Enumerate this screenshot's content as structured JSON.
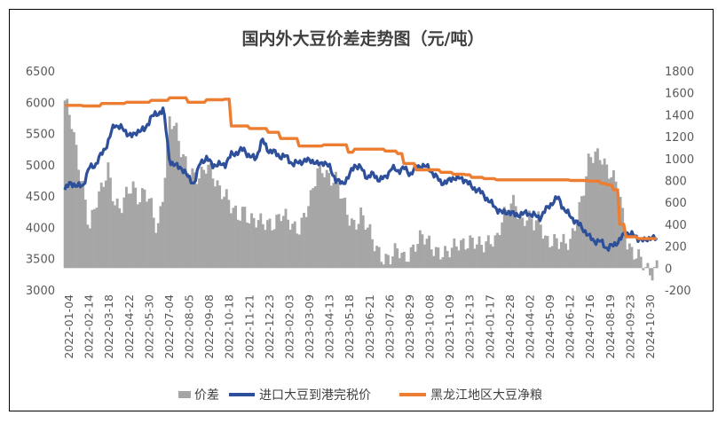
{
  "chart_data": {
    "type": "bar+line",
    "title": "国内外大豆价差走势图（元/吨）",
    "left_axis": {
      "min": 3000,
      "max": 6500,
      "ticks": [
        3000,
        3500,
        4000,
        4500,
        5000,
        5500,
        6000,
        6500
      ]
    },
    "right_axis": {
      "min": -200,
      "max": 1800,
      "ticks": [
        -200,
        0,
        200,
        400,
        600,
        800,
        1000,
        1200,
        1400,
        1600,
        1800
      ]
    },
    "x_tick_labels": [
      "2022-01-04",
      "2022-02-14",
      "2022-03-18",
      "2022-04-22",
      "2022-05-30",
      "2022-07-04",
      "2022-08-05",
      "2022-09-08",
      "2022-10-18",
      "2022-11-21",
      "2022-12-23",
      "2023-02-03",
      "2023-03-09",
      "2023-04-13",
      "2023-05-18",
      "2023-06-21",
      "2023-07-26",
      "2023-08-29",
      "2023-10-08",
      "2023-11-09",
      "2023-12-13",
      "2024-01-17",
      "2024-02-28",
      "2024-04-02",
      "2024-05-09",
      "2024-06-12",
      "2024-07-16",
      "2024-08-19",
      "2024-09-23",
      "2024-10-30"
    ],
    "legend": [
      "价差",
      "进口大豆到港完税价",
      "黑龙江地区大豆净粮"
    ],
    "colors": {
      "spread": "#a6a6a6",
      "import": "#2e4f9a",
      "heilongjiang": "#ed7d31"
    },
    "series": [
      {
        "name": "价差",
        "axis": "right",
        "kind": "bar",
        "points": [
          [
            0,
            1530
          ],
          [
            1,
            1330
          ],
          [
            2,
            1000
          ],
          [
            3,
            760
          ],
          [
            4,
            380
          ],
          [
            5,
            560
          ],
          [
            6,
            700
          ],
          [
            7,
            940
          ],
          [
            8,
            640
          ],
          [
            9,
            520
          ],
          [
            10,
            640
          ],
          [
            11,
            760
          ],
          [
            12,
            660
          ],
          [
            13,
            720
          ],
          [
            14,
            540
          ],
          [
            15,
            300
          ],
          [
            16,
            740
          ],
          [
            17,
            1400
          ],
          [
            18,
            1250
          ],
          [
            19,
            1000
          ],
          [
            20,
            920
          ],
          [
            21,
            880
          ],
          [
            22,
            830
          ],
          [
            23,
            900
          ],
          [
            24,
            850
          ],
          [
            25,
            760
          ],
          [
            26,
            690
          ],
          [
            27,
            530
          ],
          [
            28,
            440
          ],
          [
            29,
            560
          ],
          [
            30,
            470
          ],
          [
            31,
            420
          ],
          [
            32,
            380
          ],
          [
            33,
            410
          ],
          [
            34,
            440
          ],
          [
            35,
            500
          ],
          [
            36,
            420
          ],
          [
            37,
            360
          ],
          [
            38,
            390
          ],
          [
            39,
            530
          ],
          [
            40,
            630
          ],
          [
            41,
            870
          ],
          [
            42,
            920
          ],
          [
            43,
            850
          ],
          [
            44,
            800
          ],
          [
            45,
            600
          ],
          [
            46,
            470
          ],
          [
            47,
            420
          ],
          [
            48,
            500
          ],
          [
            49,
            350
          ],
          [
            50,
            230
          ],
          [
            51,
            160
          ],
          [
            52,
            100
          ],
          [
            53,
            80
          ],
          [
            54,
            150
          ],
          [
            55,
            100
          ],
          [
            56,
            170
          ],
          [
            57,
            220
          ],
          [
            58,
            260
          ],
          [
            59,
            230
          ],
          [
            60,
            200
          ],
          [
            61,
            150
          ],
          [
            62,
            100
          ],
          [
            63,
            170
          ],
          [
            64,
            260
          ],
          [
            65,
            250
          ],
          [
            66,
            230
          ],
          [
            67,
            180
          ],
          [
            68,
            220
          ],
          [
            69,
            300
          ],
          [
            70,
            250
          ],
          [
            71,
            420
          ],
          [
            72,
            540
          ],
          [
            73,
            660
          ],
          [
            74,
            420
          ],
          [
            75,
            440
          ],
          [
            76,
            380
          ],
          [
            77,
            480
          ],
          [
            78,
            280
          ],
          [
            79,
            230
          ],
          [
            80,
            200
          ],
          [
            81,
            240
          ],
          [
            82,
            280
          ],
          [
            83,
            460
          ],
          [
            84,
            620
          ],
          [
            85,
            980
          ],
          [
            86,
            1080
          ],
          [
            87,
            1050
          ],
          [
            88,
            860
          ],
          [
            89,
            790
          ],
          [
            90,
            700
          ],
          [
            91,
            300
          ],
          [
            92,
            130
          ],
          [
            93,
            70
          ],
          [
            94,
            20
          ],
          [
            95,
            -20
          ],
          [
            96,
            30
          ]
        ]
      },
      {
        "name": "进口大豆到港完税价",
        "axis": "left",
        "kind": "line",
        "points": [
          [
            0,
            4600
          ],
          [
            1,
            4720
          ],
          [
            2,
            4650
          ],
          [
            3,
            4680
          ],
          [
            4,
            4960
          ],
          [
            5,
            5000
          ],
          [
            6,
            5180
          ],
          [
            7,
            5350
          ],
          [
            8,
            5650
          ],
          [
            9,
            5600
          ],
          [
            10,
            5520
          ],
          [
            11,
            5450
          ],
          [
            12,
            5560
          ],
          [
            13,
            5550
          ],
          [
            14,
            5780
          ],
          [
            15,
            5800
          ],
          [
            16,
            5900
          ],
          [
            17,
            5060
          ],
          [
            18,
            4980
          ],
          [
            19,
            4950
          ],
          [
            20,
            4800
          ],
          [
            21,
            4700
          ],
          [
            22,
            5050
          ],
          [
            23,
            5100
          ],
          [
            24,
            5000
          ],
          [
            25,
            5000
          ],
          [
            26,
            5010
          ],
          [
            27,
            5160
          ],
          [
            28,
            5200
          ],
          [
            29,
            5250
          ],
          [
            30,
            5130
          ],
          [
            31,
            5100
          ],
          [
            32,
            5400
          ],
          [
            33,
            5230
          ],
          [
            34,
            5200
          ],
          [
            35,
            5130
          ],
          [
            36,
            5130
          ],
          [
            37,
            5000
          ],
          [
            38,
            5050
          ],
          [
            39,
            5060
          ],
          [
            40,
            5080
          ],
          [
            41,
            5000
          ],
          [
            42,
            5050
          ],
          [
            43,
            4950
          ],
          [
            44,
            4750
          ],
          [
            45,
            4700
          ],
          [
            46,
            4800
          ],
          [
            47,
            5000
          ],
          [
            48,
            4950
          ],
          [
            49,
            4800
          ],
          [
            50,
            4850
          ],
          [
            51,
            4760
          ],
          [
            52,
            4800
          ],
          [
            53,
            4950
          ],
          [
            54,
            4900
          ],
          [
            55,
            4950
          ],
          [
            56,
            4850
          ],
          [
            57,
            4960
          ],
          [
            58,
            4990
          ],
          [
            59,
            4950
          ],
          [
            60,
            4830
          ],
          [
            61,
            4720
          ],
          [
            62,
            4720
          ],
          [
            63,
            4800
          ],
          [
            64,
            4780
          ],
          [
            65,
            4760
          ],
          [
            66,
            4640
          ],
          [
            67,
            4600
          ],
          [
            68,
            4510
          ],
          [
            69,
            4400
          ],
          [
            70,
            4300
          ],
          [
            71,
            4230
          ],
          [
            72,
            4250
          ],
          [
            73,
            4200
          ],
          [
            74,
            4210
          ],
          [
            75,
            4230
          ],
          [
            76,
            4200
          ],
          [
            77,
            4150
          ],
          [
            78,
            4280
          ],
          [
            79,
            4390
          ],
          [
            80,
            4480
          ],
          [
            81,
            4280
          ],
          [
            82,
            4180
          ],
          [
            83,
            4080
          ],
          [
            84,
            3990
          ],
          [
            85,
            3850
          ],
          [
            86,
            3780
          ],
          [
            87,
            3770
          ],
          [
            88,
            3660
          ],
          [
            89,
            3720
          ],
          [
            90,
            3800
          ],
          [
            91,
            3920
          ],
          [
            92,
            3880
          ],
          [
            93,
            3830
          ],
          [
            94,
            3780
          ],
          [
            95,
            3850
          ],
          [
            96,
            3800
          ]
        ]
      },
      {
        "name": "黑龙江地区大豆净粮",
        "axis": "left",
        "kind": "line",
        "points": [
          [
            0,
            5950
          ],
          [
            3,
            5940
          ],
          [
            6,
            5980
          ],
          [
            10,
            6000
          ],
          [
            14,
            6030
          ],
          [
            17,
            6070
          ],
          [
            20,
            6000
          ],
          [
            23,
            6040
          ],
          [
            26,
            6050
          ],
          [
            27,
            5620
          ],
          [
            30,
            5580
          ],
          [
            33,
            5520
          ],
          [
            35,
            5420
          ],
          [
            37,
            5420
          ],
          [
            38,
            5300
          ],
          [
            41,
            5300
          ],
          [
            42,
            5320
          ],
          [
            44,
            5320
          ],
          [
            46,
            5200
          ],
          [
            47,
            5250
          ],
          [
            50,
            5250
          ],
          [
            52,
            5220
          ],
          [
            54,
            5180
          ],
          [
            55,
            5020
          ],
          [
            57,
            4920
          ],
          [
            59,
            4920
          ],
          [
            61,
            4880
          ],
          [
            63,
            4850
          ],
          [
            65,
            4840
          ],
          [
            66,
            4800
          ],
          [
            68,
            4780
          ],
          [
            70,
            4760
          ],
          [
            74,
            4760
          ],
          [
            78,
            4760
          ],
          [
            82,
            4750
          ],
          [
            85,
            4740
          ],
          [
            87,
            4700
          ],
          [
            88,
            4680
          ],
          [
            89,
            4600
          ],
          [
            90,
            4050
          ],
          [
            91,
            3850
          ],
          [
            93,
            3820
          ],
          [
            96,
            3820
          ]
        ]
      }
    ]
  }
}
